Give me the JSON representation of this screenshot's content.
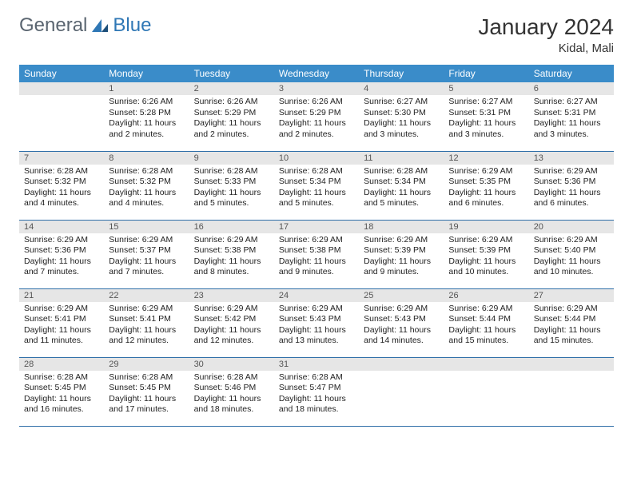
{
  "logo": {
    "part1": "General",
    "part2": "Blue"
  },
  "title": "January 2024",
  "location": "Kidal, Mali",
  "colors": {
    "header_bg": "#3a8cc9",
    "header_text": "#ffffff",
    "daynum_bg": "#e6e6e6",
    "row_border": "#2f6fa8",
    "logo_gray": "#5a6570",
    "logo_blue": "#2f77b5"
  },
  "weekdays": [
    "Sunday",
    "Monday",
    "Tuesday",
    "Wednesday",
    "Thursday",
    "Friday",
    "Saturday"
  ],
  "weeks": [
    [
      null,
      {
        "n": "1",
        "sr": "Sunrise: 6:26 AM",
        "ss": "Sunset: 5:28 PM",
        "d1": "Daylight: 11 hours",
        "d2": "and 2 minutes."
      },
      {
        "n": "2",
        "sr": "Sunrise: 6:26 AM",
        "ss": "Sunset: 5:29 PM",
        "d1": "Daylight: 11 hours",
        "d2": "and 2 minutes."
      },
      {
        "n": "3",
        "sr": "Sunrise: 6:26 AM",
        "ss": "Sunset: 5:29 PM",
        "d1": "Daylight: 11 hours",
        "d2": "and 2 minutes."
      },
      {
        "n": "4",
        "sr": "Sunrise: 6:27 AM",
        "ss": "Sunset: 5:30 PM",
        "d1": "Daylight: 11 hours",
        "d2": "and 3 minutes."
      },
      {
        "n": "5",
        "sr": "Sunrise: 6:27 AM",
        "ss": "Sunset: 5:31 PM",
        "d1": "Daylight: 11 hours",
        "d2": "and 3 minutes."
      },
      {
        "n": "6",
        "sr": "Sunrise: 6:27 AM",
        "ss": "Sunset: 5:31 PM",
        "d1": "Daylight: 11 hours",
        "d2": "and 3 minutes."
      }
    ],
    [
      {
        "n": "7",
        "sr": "Sunrise: 6:28 AM",
        "ss": "Sunset: 5:32 PM",
        "d1": "Daylight: 11 hours",
        "d2": "and 4 minutes."
      },
      {
        "n": "8",
        "sr": "Sunrise: 6:28 AM",
        "ss": "Sunset: 5:32 PM",
        "d1": "Daylight: 11 hours",
        "d2": "and 4 minutes."
      },
      {
        "n": "9",
        "sr": "Sunrise: 6:28 AM",
        "ss": "Sunset: 5:33 PM",
        "d1": "Daylight: 11 hours",
        "d2": "and 5 minutes."
      },
      {
        "n": "10",
        "sr": "Sunrise: 6:28 AM",
        "ss": "Sunset: 5:34 PM",
        "d1": "Daylight: 11 hours",
        "d2": "and 5 minutes."
      },
      {
        "n": "11",
        "sr": "Sunrise: 6:28 AM",
        "ss": "Sunset: 5:34 PM",
        "d1": "Daylight: 11 hours",
        "d2": "and 5 minutes."
      },
      {
        "n": "12",
        "sr": "Sunrise: 6:29 AM",
        "ss": "Sunset: 5:35 PM",
        "d1": "Daylight: 11 hours",
        "d2": "and 6 minutes."
      },
      {
        "n": "13",
        "sr": "Sunrise: 6:29 AM",
        "ss": "Sunset: 5:36 PM",
        "d1": "Daylight: 11 hours",
        "d2": "and 6 minutes."
      }
    ],
    [
      {
        "n": "14",
        "sr": "Sunrise: 6:29 AM",
        "ss": "Sunset: 5:36 PM",
        "d1": "Daylight: 11 hours",
        "d2": "and 7 minutes."
      },
      {
        "n": "15",
        "sr": "Sunrise: 6:29 AM",
        "ss": "Sunset: 5:37 PM",
        "d1": "Daylight: 11 hours",
        "d2": "and 7 minutes."
      },
      {
        "n": "16",
        "sr": "Sunrise: 6:29 AM",
        "ss": "Sunset: 5:38 PM",
        "d1": "Daylight: 11 hours",
        "d2": "and 8 minutes."
      },
      {
        "n": "17",
        "sr": "Sunrise: 6:29 AM",
        "ss": "Sunset: 5:38 PM",
        "d1": "Daylight: 11 hours",
        "d2": "and 9 minutes."
      },
      {
        "n": "18",
        "sr": "Sunrise: 6:29 AM",
        "ss": "Sunset: 5:39 PM",
        "d1": "Daylight: 11 hours",
        "d2": "and 9 minutes."
      },
      {
        "n": "19",
        "sr": "Sunrise: 6:29 AM",
        "ss": "Sunset: 5:39 PM",
        "d1": "Daylight: 11 hours",
        "d2": "and 10 minutes."
      },
      {
        "n": "20",
        "sr": "Sunrise: 6:29 AM",
        "ss": "Sunset: 5:40 PM",
        "d1": "Daylight: 11 hours",
        "d2": "and 10 minutes."
      }
    ],
    [
      {
        "n": "21",
        "sr": "Sunrise: 6:29 AM",
        "ss": "Sunset: 5:41 PM",
        "d1": "Daylight: 11 hours",
        "d2": "and 11 minutes."
      },
      {
        "n": "22",
        "sr": "Sunrise: 6:29 AM",
        "ss": "Sunset: 5:41 PM",
        "d1": "Daylight: 11 hours",
        "d2": "and 12 minutes."
      },
      {
        "n": "23",
        "sr": "Sunrise: 6:29 AM",
        "ss": "Sunset: 5:42 PM",
        "d1": "Daylight: 11 hours",
        "d2": "and 12 minutes."
      },
      {
        "n": "24",
        "sr": "Sunrise: 6:29 AM",
        "ss": "Sunset: 5:43 PM",
        "d1": "Daylight: 11 hours",
        "d2": "and 13 minutes."
      },
      {
        "n": "25",
        "sr": "Sunrise: 6:29 AM",
        "ss": "Sunset: 5:43 PM",
        "d1": "Daylight: 11 hours",
        "d2": "and 14 minutes."
      },
      {
        "n": "26",
        "sr": "Sunrise: 6:29 AM",
        "ss": "Sunset: 5:44 PM",
        "d1": "Daylight: 11 hours",
        "d2": "and 15 minutes."
      },
      {
        "n": "27",
        "sr": "Sunrise: 6:29 AM",
        "ss": "Sunset: 5:44 PM",
        "d1": "Daylight: 11 hours",
        "d2": "and 15 minutes."
      }
    ],
    [
      {
        "n": "28",
        "sr": "Sunrise: 6:28 AM",
        "ss": "Sunset: 5:45 PM",
        "d1": "Daylight: 11 hours",
        "d2": "and 16 minutes."
      },
      {
        "n": "29",
        "sr": "Sunrise: 6:28 AM",
        "ss": "Sunset: 5:45 PM",
        "d1": "Daylight: 11 hours",
        "d2": "and 17 minutes."
      },
      {
        "n": "30",
        "sr": "Sunrise: 6:28 AM",
        "ss": "Sunset: 5:46 PM",
        "d1": "Daylight: 11 hours",
        "d2": "and 18 minutes."
      },
      {
        "n": "31",
        "sr": "Sunrise: 6:28 AM",
        "ss": "Sunset: 5:47 PM",
        "d1": "Daylight: 11 hours",
        "d2": "and 18 minutes."
      },
      null,
      null,
      null
    ]
  ]
}
